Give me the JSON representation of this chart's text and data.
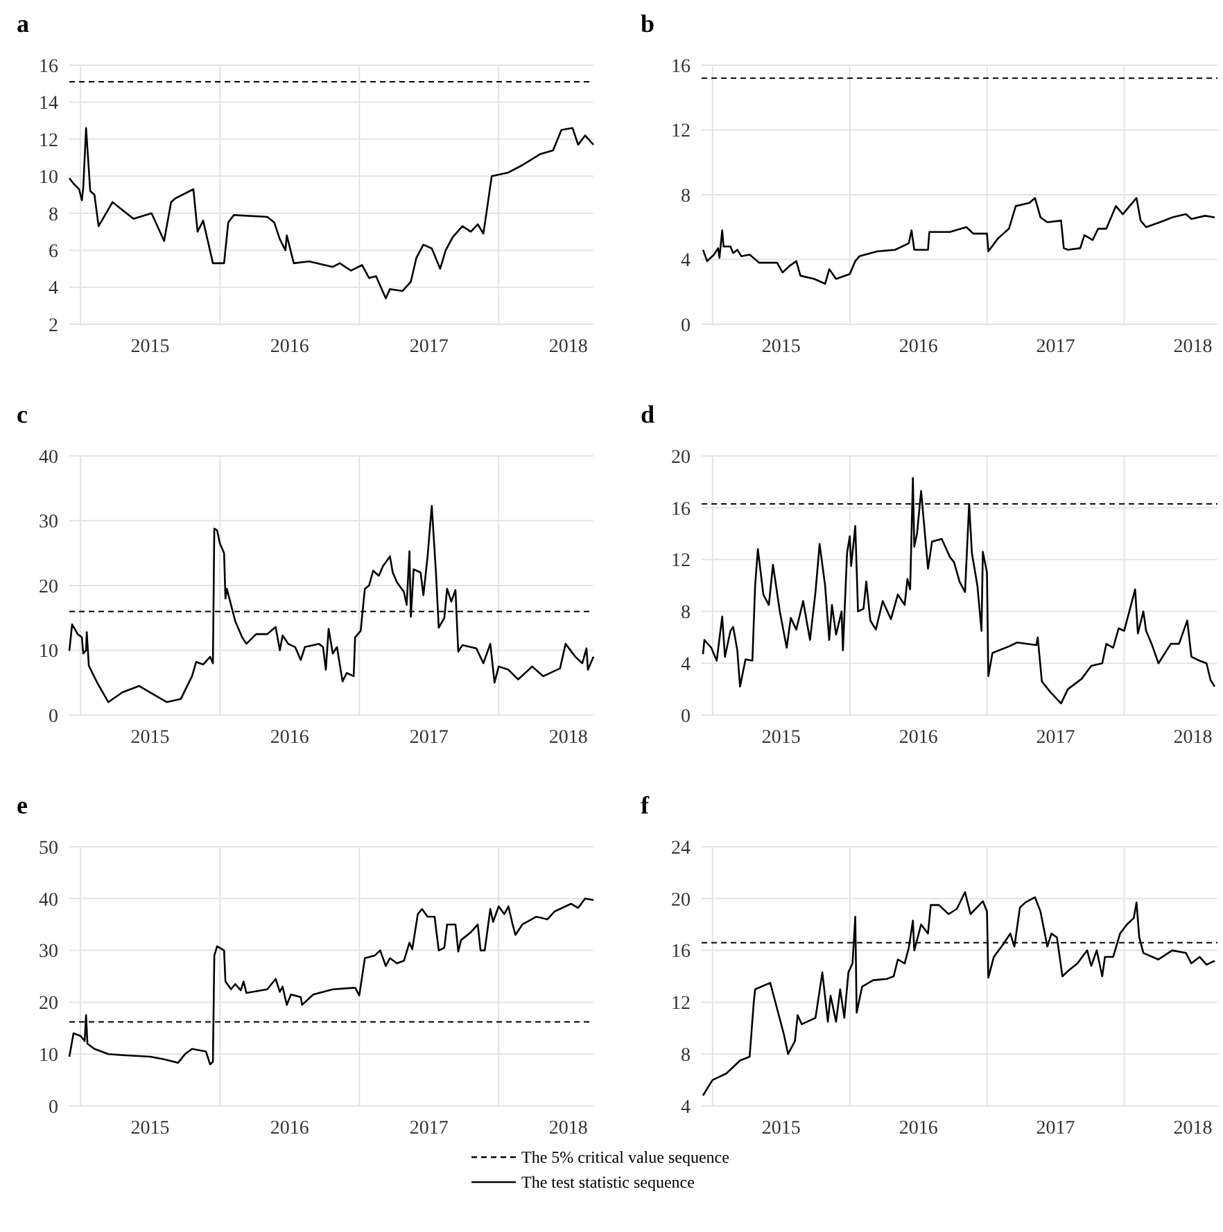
{
  "chart_data": [
    {
      "type": "line",
      "title": "a",
      "xlim": [
        2014.92,
        2018.68
      ],
      "xticks": [
        {
          "value": 2015,
          "label": null
        },
        {
          "value": 2015.5,
          "label": "2015"
        },
        {
          "value": 2016,
          "label": null
        },
        {
          "value": 2016.5,
          "label": "2016"
        },
        {
          "value": 2017,
          "label": null
        },
        {
          "value": 2017.5,
          "label": "2017"
        },
        {
          "value": 2018,
          "label": null
        },
        {
          "value": 2018.5,
          "label": "2018"
        }
      ],
      "ylim": [
        2,
        16
      ],
      "yticks": [
        2,
        4,
        6,
        8,
        10,
        12,
        14,
        16
      ],
      "grid": true,
      "ref_lines": [
        {
          "axis": "y",
          "value": 15.1,
          "color": "#000000",
          "line_style": "dashed"
        }
      ],
      "series": [
        {
          "color": "#000000",
          "x": [
            2014.92,
            2014.95,
            2014.99,
            2015.01,
            2015.02,
            2015.04,
            2015.07,
            2015.1,
            2015.13,
            2015.23,
            2015.38,
            2015.51,
            2015.6,
            2015.65,
            2015.68,
            2015.81,
            2015.84,
            2015.88,
            2015.95,
            2016.03,
            2016.06,
            2016.1,
            2016.34,
            2016.39,
            2016.43,
            2016.47,
            2016.48,
            2016.53,
            2016.64,
            2016.81,
            2016.86,
            2016.94,
            2017.02,
            2017.07,
            2017.12,
            2017.19,
            2017.22,
            2017.31,
            2017.37,
            2017.41,
            2017.46,
            2017.52,
            2017.58,
            2017.62,
            2017.67,
            2017.74,
            2017.8,
            2017.85,
            2017.89,
            2017.91,
            2017.95,
            2018.07,
            2018.17,
            2018.3,
            2018.39,
            2018.45,
            2018.53,
            2018.57,
            2018.62,
            2018.68
          ],
          "values": [
            9.9,
            9.6,
            9.3,
            8.7,
            9.4,
            12.6,
            9.2,
            9.0,
            7.3,
            8.6,
            7.7,
            8.0,
            6.5,
            8.6,
            8.8,
            9.3,
            7.0,
            7.6,
            5.3,
            5.3,
            7.5,
            7.9,
            7.8,
            7.5,
            6.6,
            6.0,
            6.8,
            5.3,
            5.4,
            5.1,
            5.3,
            4.9,
            5.2,
            4.5,
            4.6,
            3.4,
            3.9,
            3.8,
            4.3,
            5.6,
            6.3,
            6.1,
            5.0,
            6.0,
            6.7,
            7.3,
            7.0,
            7.4,
            6.9,
            7.9,
            10.0,
            10.2,
            10.6,
            11.2,
            11.4,
            12.5,
            12.6,
            11.7,
            12.2,
            11.7
          ]
        }
      ]
    },
    {
      "type": "line",
      "title": "b",
      "xlim": [
        2014.92,
        2018.68
      ],
      "xticks": [
        {
          "value": 2015,
          "label": null
        },
        {
          "value": 2015.5,
          "label": "2015"
        },
        {
          "value": 2016,
          "label": null
        },
        {
          "value": 2016.5,
          "label": "2016"
        },
        {
          "value": 2017,
          "label": null
        },
        {
          "value": 2017.5,
          "label": "2017"
        },
        {
          "value": 2018,
          "label": null
        },
        {
          "value": 2018.5,
          "label": "2018"
        }
      ],
      "ylim": [
        0,
        16
      ],
      "yticks": [
        0,
        4,
        8,
        12,
        16
      ],
      "grid": true,
      "ref_lines": [
        {
          "axis": "y",
          "value": 15.2,
          "color": "#000000",
          "line_style": "dashed"
        }
      ],
      "series": [
        {
          "color": "#000000",
          "x": [
            2014.93,
            2014.96,
            2015.01,
            2015.04,
            2015.05,
            2015.07,
            2015.08,
            2015.13,
            2015.15,
            2015.18,
            2015.21,
            2015.27,
            2015.34,
            2015.47,
            2015.51,
            2015.56,
            2015.61,
            2015.64,
            2015.74,
            2015.82,
            2015.85,
            2015.9,
            2016.0,
            2016.04,
            2016.07,
            2016.2,
            2016.33,
            2016.43,
            2016.45,
            2016.47,
            2016.57,
            2016.58,
            2016.73,
            2016.85,
            2016.9,
            2017.0,
            2017.01,
            2017.08,
            2017.16,
            2017.21,
            2017.31,
            2017.35,
            2017.39,
            2017.44,
            2017.54,
            2017.56,
            2017.59,
            2017.68,
            2017.71,
            2017.77,
            2017.81,
            2017.87,
            2017.94,
            2017.99,
            2018.09,
            2018.12,
            2018.16,
            2018.26,
            2018.35,
            2018.45,
            2018.49,
            2018.59,
            2018.66
          ],
          "values": [
            4.6,
            3.9,
            4.3,
            4.7,
            4.1,
            5.8,
            4.8,
            4.8,
            4.4,
            4.6,
            4.2,
            4.3,
            3.8,
            3.8,
            3.2,
            3.6,
            3.9,
            3.0,
            2.8,
            2.5,
            3.4,
            2.8,
            3.1,
            3.9,
            4.2,
            4.5,
            4.6,
            5.0,
            5.8,
            4.6,
            4.6,
            5.7,
            5.7,
            6.0,
            5.6,
            5.6,
            4.5,
            5.3,
            5.9,
            7.3,
            7.5,
            7.8,
            6.6,
            6.3,
            6.4,
            4.7,
            4.6,
            4.7,
            5.5,
            5.2,
            5.9,
            5.9,
            7.3,
            6.8,
            7.8,
            6.4,
            6.0,
            6.3,
            6.6,
            6.8,
            6.5,
            6.7,
            6.6
          ]
        }
      ]
    },
    {
      "type": "line",
      "title": "c",
      "xlim": [
        2014.92,
        2018.68
      ],
      "xticks": [
        {
          "value": 2015,
          "label": null
        },
        {
          "value": 2015.5,
          "label": "2015"
        },
        {
          "value": 2016,
          "label": null
        },
        {
          "value": 2016.5,
          "label": "2016"
        },
        {
          "value": 2017,
          "label": null
        },
        {
          "value": 2017.5,
          "label": "2017"
        },
        {
          "value": 2018,
          "label": null
        },
        {
          "value": 2018.5,
          "label": "2018"
        }
      ],
      "ylim": [
        0,
        40
      ],
      "yticks": [
        0,
        10,
        20,
        30,
        40
      ],
      "grid": true,
      "ref_lines": [
        {
          "axis": "y",
          "value": 16.0,
          "color": "#000000",
          "line_style": "dashed"
        }
      ],
      "series": [
        {
          "color": "#000000",
          "x": [
            2014.92,
            2014.94,
            2014.98,
            2015.01,
            2015.02,
            2015.04,
            2015.045,
            2015.06,
            2015.12,
            2015.2,
            2015.3,
            2015.42,
            2015.5,
            2015.62,
            2015.72,
            2015.8,
            2015.83,
            2015.88,
            2015.93,
            2015.95,
            2015.96,
            2015.98,
            2016.0,
            2016.03,
            2016.04,
            2016.05,
            2016.08,
            2016.11,
            2016.16,
            2016.19,
            2016.26,
            2016.34,
            2016.4,
            2016.43,
            2016.45,
            2016.49,
            2016.54,
            2016.58,
            2016.61,
            2016.71,
            2016.74,
            2016.76,
            2016.78,
            2016.81,
            2016.84,
            2016.88,
            2016.91,
            2016.96,
            2016.97,
            2017.01,
            2017.04,
            2017.07,
            2017.1,
            2017.14,
            2017.17,
            2017.22,
            2017.24,
            2017.27,
            2017.32,
            2017.34,
            2017.36,
            2017.37,
            2017.39,
            2017.44,
            2017.46,
            2017.49,
            2017.52,
            2017.55,
            2017.57,
            2017.61,
            2017.63,
            2017.66,
            2017.69,
            2017.71,
            2017.74,
            2017.84,
            2017.89,
            2017.94,
            2017.97,
            2018.0,
            2018.07,
            2018.14,
            2018.24,
            2018.32,
            2018.44,
            2018.48,
            2018.55,
            2018.6,
            2018.63,
            2018.64,
            2018.68
          ],
          "values": [
            9.9,
            14.0,
            12.5,
            12.0,
            9.5,
            10.0,
            12.8,
            7.6,
            5.0,
            2.0,
            3.5,
            4.5,
            3.5,
            2.0,
            2.5,
            6.0,
            8.2,
            7.8,
            9.0,
            8.0,
            28.8,
            28.5,
            26.5,
            25.0,
            18.0,
            19.5,
            17.0,
            14.5,
            12.0,
            11.0,
            12.5,
            12.5,
            13.6,
            10.0,
            12.3,
            11.0,
            10.5,
            8.5,
            10.5,
            11.0,
            10.5,
            7.0,
            13.3,
            9.5,
            10.5,
            5.2,
            6.5,
            6.0,
            12.0,
            13.0,
            19.5,
            20.0,
            22.3,
            21.5,
            23.0,
            24.5,
            22.0,
            20.5,
            19.0,
            17.0,
            25.3,
            15.2,
            22.5,
            22.0,
            18.5,
            24.5,
            32.3,
            22.0,
            13.5,
            15.0,
            19.5,
            17.5,
            19.3,
            9.8,
            10.8,
            10.3,
            8.0,
            11.0,
            5.0,
            7.5,
            7.0,
            5.5,
            7.5,
            6.0,
            7.2,
            11.0,
            9.0,
            8.0,
            10.3,
            7.0,
            9.0
          ]
        }
      ]
    },
    {
      "type": "line",
      "title": "d",
      "xlim": [
        2014.92,
        2018.68
      ],
      "xticks": [
        {
          "value": 2015,
          "label": null
        },
        {
          "value": 2015.5,
          "label": "2015"
        },
        {
          "value": 2016,
          "label": null
        },
        {
          "value": 2016.5,
          "label": "2016"
        },
        {
          "value": 2017,
          "label": null
        },
        {
          "value": 2017.5,
          "label": "2017"
        },
        {
          "value": 2018,
          "label": null
        },
        {
          "value": 2018.5,
          "label": "2018"
        }
      ],
      "ylim": [
        0,
        20
      ],
      "yticks": [
        0,
        4,
        8,
        12,
        16,
        20
      ],
      "grid": true,
      "ref_lines": [
        {
          "axis": "y",
          "value": 16.3,
          "color": "#000000",
          "line_style": "dashed"
        }
      ],
      "series": [
        {
          "color": "#000000",
          "x": [
            2014.93,
            2014.94,
            2014.99,
            2015.03,
            2015.07,
            2015.09,
            2015.13,
            2015.15,
            2015.18,
            2015.2,
            2015.24,
            2015.29,
            2015.31,
            2015.33,
            2015.37,
            2015.41,
            2015.44,
            2015.49,
            2015.54,
            2015.57,
            2015.61,
            2015.66,
            2015.71,
            2015.75,
            2015.78,
            2015.82,
            2015.85,
            2015.87,
            2015.9,
            2015.94,
            2015.95,
            2015.98,
            2016.0,
            2016.01,
            2016.04,
            2016.06,
            2016.1,
            2016.12,
            2016.15,
            2016.19,
            2016.24,
            2016.3,
            2016.35,
            2016.4,
            2016.42,
            2016.44,
            2016.46,
            2016.47,
            2016.49,
            2016.52,
            2016.57,
            2016.6,
            2016.67,
            2016.73,
            2016.76,
            2016.8,
            2016.84,
            2016.87,
            2016.89,
            2016.93,
            2016.96,
            2016.97,
            2017.0,
            2017.01,
            2017.04,
            2017.16,
            2017.22,
            2017.36,
            2017.37,
            2017.4,
            2017.46,
            2017.54,
            2017.59,
            2017.69,
            2017.76,
            2017.84,
            2017.87,
            2017.92,
            2017.96,
            2018.0,
            2018.05,
            2018.08,
            2018.1,
            2018.14,
            2018.16,
            2018.2,
            2018.25,
            2018.34,
            2018.4,
            2018.46,
            2018.49,
            2018.55,
            2018.6,
            2018.63,
            2018.66
          ],
          "values": [
            4.7,
            5.8,
            5.2,
            4.2,
            7.6,
            4.5,
            6.5,
            6.8,
            5.0,
            2.2,
            4.3,
            4.2,
            10.0,
            12.8,
            9.3,
            8.5,
            11.6,
            8.0,
            5.2,
            7.5,
            6.6,
            8.8,
            5.8,
            9.5,
            13.2,
            10.0,
            5.8,
            8.5,
            6.2,
            8.0,
            5.0,
            12.5,
            13.8,
            11.5,
            14.6,
            8.0,
            8.2,
            10.3,
            7.3,
            6.6,
            8.8,
            7.4,
            9.3,
            8.5,
            10.5,
            9.7,
            18.3,
            13.0,
            14.0,
            17.3,
            11.3,
            13.4,
            13.6,
            12.2,
            11.8,
            10.3,
            9.5,
            16.3,
            12.5,
            10.0,
            6.5,
            12.6,
            11.0,
            3.0,
            4.8,
            5.3,
            5.6,
            5.4,
            6.0,
            2.6,
            1.8,
            0.9,
            2.0,
            2.8,
            3.8,
            4.0,
            5.5,
            5.2,
            6.7,
            6.5,
            8.5,
            9.7,
            6.3,
            8.0,
            6.5,
            5.5,
            4.0,
            5.5,
            5.5,
            7.3,
            4.5,
            4.2,
            4.0,
            2.7,
            2.2
          ]
        }
      ]
    },
    {
      "type": "line",
      "title": "e",
      "xlim": [
        2014.92,
        2018.68
      ],
      "xticks": [
        {
          "value": 2015,
          "label": null
        },
        {
          "value": 2015.5,
          "label": "2015"
        },
        {
          "value": 2016,
          "label": null
        },
        {
          "value": 2016.5,
          "label": "2016"
        },
        {
          "value": 2017,
          "label": null
        },
        {
          "value": 2017.5,
          "label": "2017"
        },
        {
          "value": 2018,
          "label": null
        },
        {
          "value": 2018.5,
          "label": "2018"
        }
      ],
      "ylim": [
        0,
        50
      ],
      "yticks": [
        0,
        10,
        20,
        30,
        40,
        50
      ],
      "grid": true,
      "ref_lines": [
        {
          "axis": "y",
          "value": 16.2,
          "color": "#000000",
          "line_style": "dashed"
        }
      ],
      "series": [
        {
          "color": "#000000",
          "x": [
            2014.92,
            2014.95,
            2015.0,
            2015.03,
            2015.04,
            2015.05,
            2015.1,
            2015.2,
            2015.3,
            2015.5,
            2015.6,
            2015.7,
            2015.75,
            2015.8,
            2015.9,
            2015.93,
            2015.95,
            2015.96,
            2015.98,
            2016.03,
            2016.04,
            2016.08,
            2016.11,
            2016.15,
            2016.17,
            2016.19,
            2016.34,
            2016.4,
            2016.43,
            2016.45,
            2016.48,
            2016.51,
            2016.58,
            2016.59,
            2016.67,
            2016.81,
            2016.97,
            2017.0,
            2017.04,
            2017.11,
            2017.15,
            2017.19,
            2017.22,
            2017.27,
            2017.32,
            2017.36,
            2017.38,
            2017.42,
            2017.45,
            2017.49,
            2017.54,
            2017.57,
            2017.61,
            2017.63,
            2017.69,
            2017.71,
            2017.73,
            2017.8,
            2017.85,
            2017.87,
            2017.9,
            2017.94,
            2017.96,
            2018.0,
            2018.04,
            2018.07,
            2018.1,
            2018.12,
            2018.17,
            2018.27,
            2018.35,
            2018.4,
            2018.52,
            2018.57,
            2018.62,
            2018.68
          ],
          "values": [
            9.5,
            14.0,
            13.5,
            12.5,
            17.5,
            12.0,
            11.0,
            10.0,
            9.8,
            9.5,
            9.0,
            8.3,
            10.0,
            11.0,
            10.5,
            8.0,
            8.5,
            29.0,
            30.8,
            30.0,
            24.0,
            22.5,
            23.5,
            22.3,
            24.0,
            21.8,
            22.5,
            24.5,
            22.0,
            23.0,
            19.5,
            21.5,
            21.0,
            19.5,
            21.5,
            22.5,
            22.8,
            21.3,
            28.5,
            29.0,
            30.0,
            27.0,
            28.5,
            27.5,
            28.0,
            31.5,
            30.2,
            37.0,
            38.0,
            36.5,
            36.5,
            30.0,
            30.5,
            35.0,
            35.0,
            29.8,
            32.0,
            33.5,
            35.0,
            30.0,
            30.0,
            38.0,
            35.5,
            38.5,
            37.0,
            38.5,
            35.0,
            33.0,
            35.0,
            36.5,
            36.0,
            37.5,
            39.0,
            38.2,
            40.0,
            39.7
          ]
        }
      ]
    },
    {
      "type": "line",
      "title": "f",
      "xlim": [
        2014.92,
        2018.68
      ],
      "xticks": [
        {
          "value": 2015,
          "label": null
        },
        {
          "value": 2015.5,
          "label": "2015"
        },
        {
          "value": 2016,
          "label": null
        },
        {
          "value": 2016.5,
          "label": "2016"
        },
        {
          "value": 2017,
          "label": null
        },
        {
          "value": 2017.5,
          "label": "2017"
        },
        {
          "value": 2018,
          "label": null
        },
        {
          "value": 2018.5,
          "label": "2018"
        }
      ],
      "ylim": [
        4,
        24
      ],
      "yticks": [
        4,
        8,
        12,
        16,
        20,
        24
      ],
      "grid": true,
      "legend": "bottom",
      "ref_lines": [
        {
          "axis": "y",
          "value": 16.6,
          "color": "#000000",
          "line_style": "dashed",
          "label": "The 5% critical value sequence"
        }
      ],
      "series": [
        {
          "name": "The test statistic sequence",
          "color": "#000000",
          "x": [
            2014.93,
            2014.97,
            2015.0,
            2015.1,
            2015.2,
            2015.27,
            2015.3,
            2015.31,
            2015.42,
            2015.47,
            2015.52,
            2015.55,
            2015.6,
            2015.62,
            2015.65,
            2015.75,
            2015.8,
            2015.84,
            2015.86,
            2015.9,
            2015.93,
            2015.96,
            2015.99,
            2016.02,
            2016.04,
            2016.05,
            2016.09,
            2016.17,
            2016.27,
            2016.32,
            2016.35,
            2016.4,
            2016.43,
            2016.46,
            2016.47,
            2016.52,
            2016.57,
            2016.59,
            2016.65,
            2016.72,
            2016.78,
            2016.84,
            2016.88,
            2016.97,
            2017.0,
            2017.01,
            2017.05,
            2017.12,
            2017.17,
            2017.2,
            2017.24,
            2017.28,
            2017.35,
            2017.39,
            2017.44,
            2017.47,
            2017.51,
            2017.55,
            2017.6,
            2017.66,
            2017.73,
            2017.76,
            2017.8,
            2017.84,
            2017.86,
            2017.92,
            2017.97,
            2018.02,
            2018.07,
            2018.09,
            2018.11,
            2018.14,
            2018.25,
            2018.35,
            2018.45,
            2018.49,
            2018.55,
            2018.6,
            2018.66
          ],
          "values": [
            4.8,
            5.5,
            6.0,
            6.5,
            7.5,
            7.8,
            12.0,
            13.0,
            13.5,
            11.5,
            9.5,
            8.0,
            9.0,
            11.0,
            10.3,
            10.8,
            14.3,
            10.5,
            12.5,
            10.5,
            13.0,
            10.8,
            14.3,
            15.0,
            18.6,
            11.2,
            13.2,
            13.7,
            13.8,
            14.0,
            15.3,
            15.0,
            16.2,
            18.3,
            16.0,
            18.0,
            17.3,
            19.5,
            19.5,
            18.8,
            19.2,
            20.5,
            18.8,
            19.8,
            19.0,
            13.9,
            15.5,
            16.5,
            17.3,
            16.3,
            19.3,
            19.7,
            20.1,
            19.0,
            16.3,
            17.3,
            17.0,
            14.0,
            14.5,
            15.0,
            16.0,
            14.8,
            16.0,
            14.0,
            15.5,
            15.5,
            17.3,
            18.0,
            18.5,
            19.7,
            17.0,
            15.8,
            15.3,
            16.0,
            15.8,
            15.0,
            15.5,
            14.9,
            15.2
          ]
        }
      ]
    }
  ]
}
